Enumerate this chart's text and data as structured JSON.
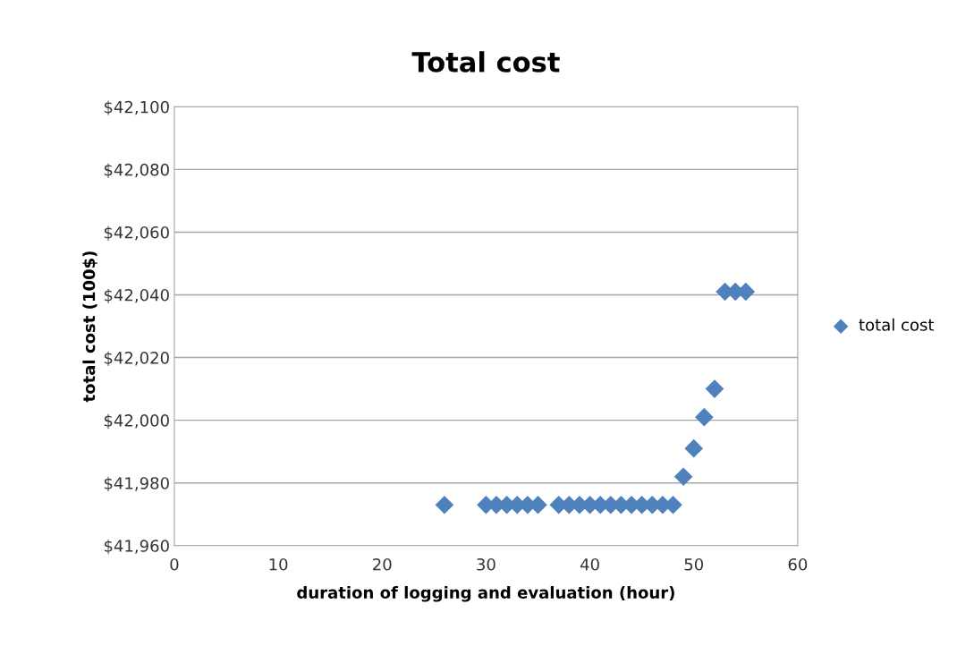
{
  "chart_data": {
    "type": "scatter",
    "title": "Total cost",
    "xlabel": "duration of logging and evaluation (hour)",
    "ylabel": "total cost (100$)",
    "series": [
      {
        "name": "total cost",
        "color": "#4f81bd",
        "x": [
          26,
          30,
          31,
          32,
          33,
          34,
          35,
          37,
          38,
          39,
          40,
          41,
          42,
          43,
          44,
          45,
          46,
          47,
          48,
          49,
          50,
          51,
          52,
          53,
          54,
          55
        ],
        "values": [
          41973,
          41973,
          41973,
          41973,
          41973,
          41973,
          41973,
          41973,
          41973,
          41973,
          41973,
          41973,
          41973,
          41973,
          41973,
          41973,
          41973,
          41973,
          41973,
          41982,
          41991,
          42001,
          42010,
          42041,
          42041,
          42041
        ]
      }
    ],
    "xlim": [
      0,
      60
    ],
    "xticks": [
      0,
      10,
      20,
      30,
      40,
      50,
      60
    ],
    "ylim": [
      41960,
      42100
    ],
    "yticks": [
      {
        "value": 41960,
        "label": "$41,960"
      },
      {
        "value": 41980,
        "label": "$41,980"
      },
      {
        "value": 42000,
        "label": "$42,000"
      },
      {
        "value": 42020,
        "label": "$42,020"
      },
      {
        "value": 42040,
        "label": "$42,040"
      },
      {
        "value": 42060,
        "label": "$42,060"
      },
      {
        "value": 42080,
        "label": "$42,080"
      },
      {
        "value": 42100,
        "label": "$42,100"
      }
    ],
    "grid": "y",
    "legend": "right",
    "marker": "diamond"
  }
}
